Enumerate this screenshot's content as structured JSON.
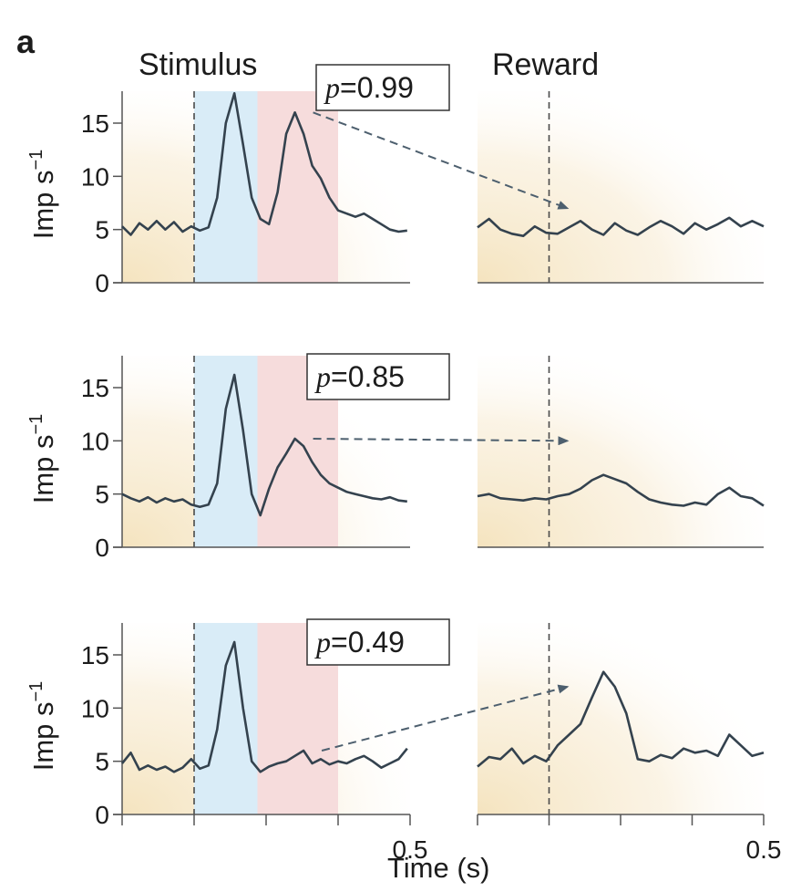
{
  "panel_label": "a",
  "colors": {
    "trace": "#34424e",
    "stimulus_shade": "#d9ecf7",
    "reward_shade": "#f6dcdc",
    "background_glow": "#f4e2bb",
    "axis": "#555555",
    "dashed_marker": "#4a4a4a",
    "arrow": "#4d5f6e"
  },
  "chart_data": {
    "type": "line",
    "columns": [
      "Stimulus",
      "Reward"
    ],
    "xlabel": "Time (s)",
    "ylabel": "Imp s",
    "ylabel_superscript": "−1",
    "ylim": [
      0,
      18
    ],
    "yticks": [
      0,
      5,
      10,
      15
    ],
    "xlim_stimulus": [
      -0.5,
      0.5
    ],
    "xlim_reward": [
      -0.5,
      0.5
    ],
    "xticks": [
      -0.5,
      -0.25,
      0,
      0.25,
      0.5
    ],
    "xtick_labels": [
      {
        "value": 0.5,
        "label": "0.5"
      }
    ],
    "stimulus_onset": -0.25,
    "reward_onset": -0.25,
    "stimulus_shaded_windows": [
      {
        "name": "stimulus",
        "x": [
          -0.25,
          -0.03
        ],
        "color": "stimulus_shade"
      },
      {
        "name": "reward",
        "x": [
          -0.03,
          0.25
        ],
        "color": "reward_shade"
      }
    ],
    "panels": [
      {
        "p_label": "p",
        "p_value": "0.99",
        "stimulus_x": [
          -0.5,
          -0.47,
          -0.44,
          -0.41,
          -0.38,
          -0.35,
          -0.32,
          -0.29,
          -0.26,
          -0.23,
          -0.2,
          -0.17,
          -0.14,
          -0.11,
          -0.08,
          -0.05,
          -0.02,
          0.01,
          0.04,
          0.07,
          0.1,
          0.13,
          0.16,
          0.19,
          0.22,
          0.25,
          0.28,
          0.31,
          0.34,
          0.37,
          0.4,
          0.43,
          0.46,
          0.49
        ],
        "stimulus_y": [
          5.3,
          4.5,
          5.6,
          5.0,
          5.8,
          5.0,
          5.7,
          4.8,
          5.3,
          4.9,
          5.2,
          8,
          15,
          17.8,
          13,
          8,
          6.0,
          5.5,
          8.5,
          14,
          16,
          14,
          11,
          9.8,
          8,
          6.8,
          6.5,
          6.2,
          6.5,
          6.0,
          5.5,
          5.0,
          4.8,
          4.9
        ],
        "reward_x": [
          -0.5,
          -0.46,
          -0.42,
          -0.38,
          -0.34,
          -0.3,
          -0.26,
          -0.22,
          -0.18,
          -0.14,
          -0.1,
          -0.06,
          -0.02,
          0.02,
          0.06,
          0.1,
          0.14,
          0.18,
          0.22,
          0.26,
          0.3,
          0.34,
          0.38,
          0.42,
          0.46,
          0.5
        ],
        "reward_y": [
          5.2,
          6.0,
          5.0,
          4.6,
          4.4,
          5.3,
          4.7,
          4.6,
          5.2,
          5.8,
          5.0,
          4.5,
          5.6,
          4.9,
          4.5,
          5.2,
          5.8,
          5.3,
          4.6,
          5.6,
          5.0,
          5.5,
          6.1,
          5.3,
          5.8,
          5.3
        ]
      },
      {
        "p_label": "p",
        "p_value": "0.85",
        "stimulus_x": [
          -0.5,
          -0.47,
          -0.44,
          -0.41,
          -0.38,
          -0.35,
          -0.32,
          -0.29,
          -0.26,
          -0.23,
          -0.2,
          -0.17,
          -0.14,
          -0.11,
          -0.08,
          -0.05,
          -0.02,
          0.01,
          0.04,
          0.07,
          0.1,
          0.13,
          0.16,
          0.19,
          0.22,
          0.25,
          0.28,
          0.31,
          0.34,
          0.37,
          0.4,
          0.43,
          0.46,
          0.49
        ],
        "stimulus_y": [
          5.0,
          4.6,
          4.3,
          4.7,
          4.2,
          4.6,
          4.3,
          4.5,
          4.0,
          3.8,
          4.0,
          6,
          13,
          16.2,
          11,
          5,
          3.0,
          5.5,
          7.5,
          8.8,
          10.2,
          9.5,
          8,
          6.8,
          6.0,
          5.6,
          5.2,
          5.0,
          4.8,
          4.6,
          4.5,
          4.7,
          4.4,
          4.3
        ],
        "reward_x": [
          -0.5,
          -0.46,
          -0.42,
          -0.38,
          -0.34,
          -0.3,
          -0.26,
          -0.22,
          -0.18,
          -0.14,
          -0.1,
          -0.06,
          -0.02,
          0.02,
          0.06,
          0.1,
          0.14,
          0.18,
          0.22,
          0.26,
          0.3,
          0.34,
          0.38,
          0.42,
          0.46,
          0.5
        ],
        "reward_y": [
          4.8,
          5.0,
          4.6,
          4.5,
          4.4,
          4.6,
          4.5,
          4.8,
          5.0,
          5.5,
          6.3,
          6.8,
          6.4,
          6.0,
          5.2,
          4.5,
          4.2,
          4.0,
          3.9,
          4.2,
          4.0,
          5.0,
          5.6,
          4.8,
          4.6,
          3.9
        ]
      },
      {
        "p_label": "p",
        "p_value": "0.49",
        "stimulus_x": [
          -0.5,
          -0.47,
          -0.44,
          -0.41,
          -0.38,
          -0.35,
          -0.32,
          -0.29,
          -0.26,
          -0.23,
          -0.2,
          -0.17,
          -0.14,
          -0.11,
          -0.08,
          -0.05,
          -0.02,
          0.01,
          0.04,
          0.07,
          0.1,
          0.13,
          0.16,
          0.19,
          0.22,
          0.25,
          0.28,
          0.31,
          0.34,
          0.37,
          0.4,
          0.43,
          0.46,
          0.49
        ],
        "stimulus_y": [
          4.8,
          5.8,
          4.2,
          4.6,
          4.2,
          4.5,
          4.0,
          4.4,
          5.2,
          4.3,
          4.6,
          8,
          14,
          16.2,
          10,
          5,
          4.0,
          4.5,
          4.8,
          5.0,
          5.5,
          6.0,
          4.8,
          5.2,
          4.7,
          5.0,
          4.8,
          5.2,
          5.5,
          5.0,
          4.4,
          4.8,
          5.2,
          6.2
        ],
        "reward_x": [
          -0.5,
          -0.46,
          -0.42,
          -0.38,
          -0.34,
          -0.3,
          -0.26,
          -0.22,
          -0.18,
          -0.14,
          -0.1,
          -0.06,
          -0.02,
          0.02,
          0.06,
          0.1,
          0.14,
          0.18,
          0.22,
          0.26,
          0.3,
          0.34,
          0.38,
          0.42,
          0.46,
          0.5
        ],
        "reward_y": [
          4.5,
          5.4,
          5.2,
          6.2,
          4.8,
          5.5,
          5.0,
          6.5,
          7.5,
          8.5,
          11,
          13.4,
          12,
          9.5,
          5.2,
          5.0,
          5.6,
          5.3,
          6.2,
          5.8,
          6.0,
          5.5,
          7.5,
          6.5,
          5.5,
          5.8
        ]
      }
    ],
    "arrow_targets": [
      7,
      10,
      12
    ]
  }
}
